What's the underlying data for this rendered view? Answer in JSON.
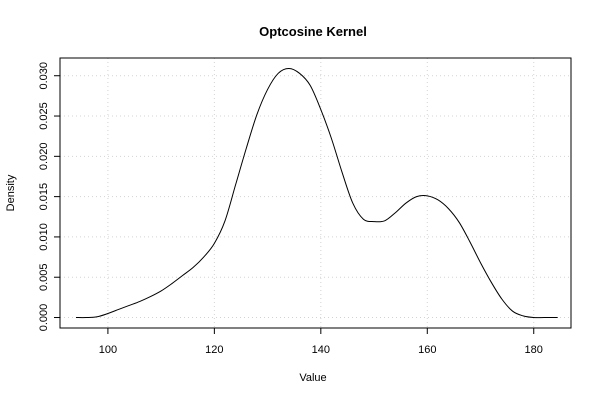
{
  "chart_data": {
    "type": "line",
    "title": "Optcosine Kernel",
    "xlabel": "Value",
    "ylabel": "Density",
    "xlim": [
      91,
      187
    ],
    "ylim": [
      -0.0013,
      0.0322
    ],
    "x_ticks": [
      100,
      120,
      140,
      160,
      180
    ],
    "x_tick_labels": [
      "100",
      "120",
      "140",
      "160",
      "180"
    ],
    "y_ticks": [
      0,
      0.005,
      0.01,
      0.015,
      0.02,
      0.025,
      0.03
    ],
    "y_tick_labels": [
      "0.000",
      "0.005",
      "0.010",
      "0.015",
      "0.020",
      "0.025",
      "0.030"
    ],
    "grid": true,
    "colors": {
      "line": "#000000",
      "grid": "#d3d3d3",
      "box": "#000000"
    },
    "series": [
      {
        "x": [
          94,
          96,
          98,
          100,
          102,
          104,
          106,
          108,
          110,
          112,
          114,
          116,
          118,
          120,
          122,
          124,
          126,
          128,
          130,
          132,
          134,
          136,
          138,
          140,
          142,
          144,
          146,
          148,
          150,
          152,
          154,
          156,
          158,
          160,
          162,
          164,
          166,
          168,
          170,
          172,
          174,
          176,
          178,
          180,
          182,
          184.5
        ],
        "y": [
          0.0,
          0.0,
          0.0001,
          0.0005,
          0.001,
          0.0015,
          0.002,
          0.0026,
          0.0033,
          0.0042,
          0.0052,
          0.0062,
          0.0075,
          0.0092,
          0.012,
          0.0165,
          0.021,
          0.0252,
          0.0283,
          0.0303,
          0.0309,
          0.0303,
          0.0288,
          0.0258,
          0.0222,
          0.018,
          0.0142,
          0.0122,
          0.0119,
          0.012,
          0.013,
          0.0142,
          0.015,
          0.0151,
          0.0146,
          0.0135,
          0.0118,
          0.0094,
          0.0068,
          0.0044,
          0.0023,
          0.0008,
          0.0002,
          0.0,
          0.0,
          0.0
        ]
      }
    ]
  }
}
